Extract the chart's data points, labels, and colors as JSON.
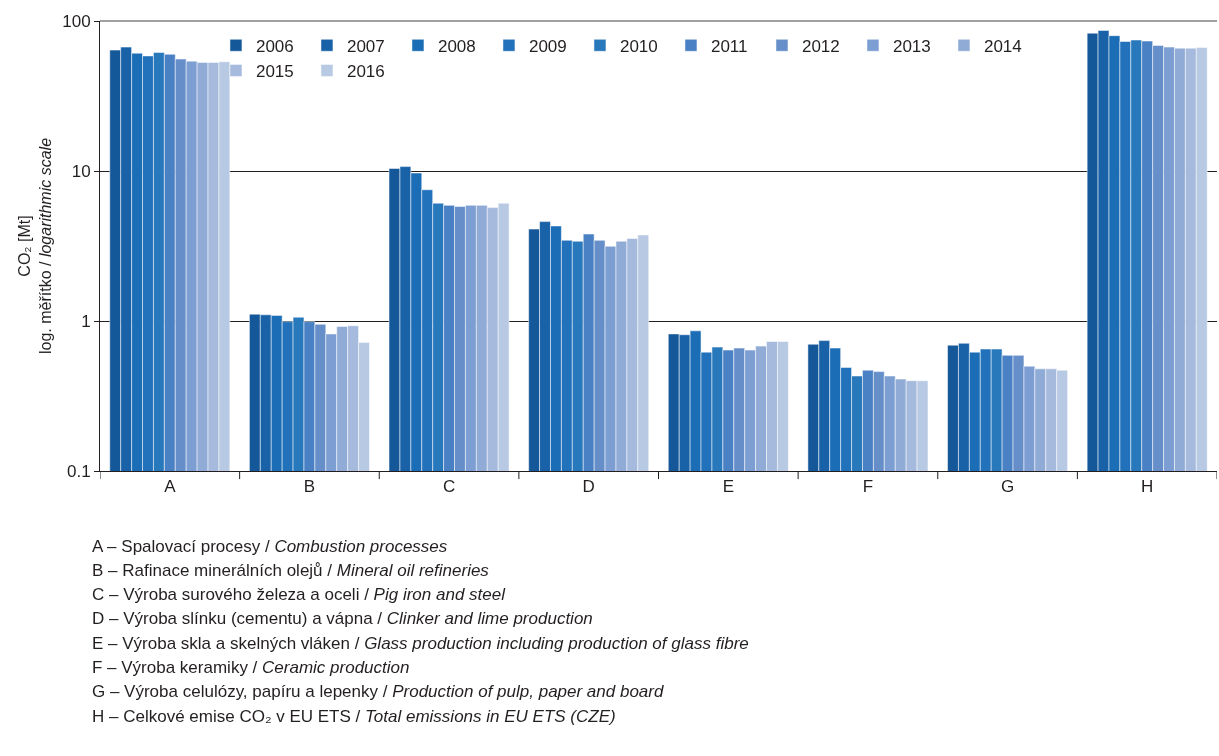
{
  "chart_data": {
    "type": "bar",
    "categories": [
      "A",
      "B",
      "C",
      "D",
      "E",
      "F",
      "G",
      "H"
    ],
    "ylabel": "CO₂ [Mt]\nlog. měřítko / logarithmic scale",
    "log": true,
    "ylim": [
      0.1,
      100
    ],
    "yticks": [
      0.1,
      1,
      10,
      100
    ],
    "grid": "y",
    "legend": "top",
    "series": [
      {
        "name": "2006",
        "color": "#15589a",
        "values": [
          64,
          1.11,
          10.4,
          4.1,
          0.82,
          0.7,
          0.69,
          83
        ]
      },
      {
        "name": "2007",
        "color": "#1a62a8",
        "values": [
          67,
          1.1,
          10.7,
          4.6,
          0.81,
          0.74,
          0.71,
          86.5
        ]
      },
      {
        "name": "2008",
        "color": "#1b6db6",
        "values": [
          61,
          1.09,
          9.7,
          4.3,
          0.86,
          0.66,
          0.62,
          79.8
        ]
      },
      {
        "name": "2009",
        "color": "#2171bb",
        "values": [
          58.5,
          0.99,
          7.5,
          3.45,
          0.62,
          0.49,
          0.65,
          73
        ]
      },
      {
        "name": "2010",
        "color": "#2878bc",
        "values": [
          61.7,
          1.06,
          6.1,
          3.4,
          0.67,
          0.43,
          0.65,
          74.7
        ]
      },
      {
        "name": "2011",
        "color": "#4a80c4",
        "values": [
          60,
          0.99,
          5.9,
          3.8,
          0.64,
          0.47,
          0.59,
          73.5
        ]
      },
      {
        "name": "2012",
        "color": "#668fca",
        "values": [
          55.8,
          0.95,
          5.8,
          3.45,
          0.66,
          0.46,
          0.59,
          68.7
        ]
      },
      {
        "name": "2013",
        "color": "#7c9ed2",
        "values": [
          54,
          0.82,
          5.9,
          3.15,
          0.64,
          0.43,
          0.5,
          67
        ]
      },
      {
        "name": "2014",
        "color": "#90acd6",
        "values": [
          52.9,
          0.92,
          5.9,
          3.4,
          0.68,
          0.41,
          0.48,
          65.9
        ]
      },
      {
        "name": "2015",
        "color": "#a5badd",
        "values": [
          52.9,
          0.93,
          5.7,
          3.55,
          0.73,
          0.4,
          0.48,
          65.9
        ]
      },
      {
        "name": "2016",
        "color": "#b8c9e3",
        "values": [
          53.5,
          0.72,
          6.1,
          3.75,
          0.73,
          0.4,
          0.47,
          66.5
        ]
      }
    ],
    "annotations": [
      "A – Spalovací procesy / Combustion processes",
      "B – Rafinace minerálních olejů / Mineral oil refineries",
      "C – Výroba surového železa a oceli / Pig iron and steel",
      "D – Výroba slínku (cementu) a vápna / Clinker and lime production",
      "E – Výroba skla a skelných vláken / Glass production including production of glass fibre",
      "F – Výroba keramiky / Ceramic production",
      "G – Výroba celulózy, papíru a lepenky / Production of pulp, paper and board",
      "H – Celkové emise CO₂ v EU ETS / Total emissions in EU ETS (CZE)"
    ]
  }
}
